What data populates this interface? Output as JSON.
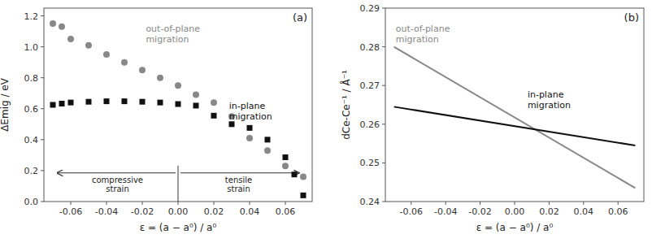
{
  "chart_data": [
    {
      "type": "scatter",
      "title": "(a)",
      "x_label": "ε = (a − a⁰) / a⁰",
      "y_label": "ΔEmig / eV",
      "series": [
        {
          "name": "out-of-plane\nmigration",
          "color": "#888888",
          "marker": "circle",
          "x": [
            -0.07,
            -0.065,
            -0.06,
            -0.05,
            -0.04,
            -0.03,
            -0.02,
            -0.01,
            0.0,
            0.01,
            0.02,
            0.03,
            0.04,
            0.05,
            0.06,
            0.07
          ],
          "values": [
            1.15,
            1.13,
            1.05,
            1.01,
            0.95,
            0.9,
            0.85,
            0.8,
            0.75,
            0.69,
            0.64,
            0.55,
            0.41,
            0.33,
            0.23,
            0.16
          ]
        },
        {
          "name": "in-plane\nmigration",
          "color": "#111111",
          "marker": "square",
          "x": [
            -0.07,
            -0.065,
            -0.06,
            -0.05,
            -0.04,
            -0.03,
            -0.02,
            -0.01,
            0.0,
            0.01,
            0.02,
            0.03,
            0.04,
            0.05,
            0.06,
            0.065,
            0.07
          ],
          "values": [
            0.625,
            0.633,
            0.64,
            0.645,
            0.648,
            0.648,
            0.645,
            0.64,
            0.63,
            0.62,
            0.555,
            0.5,
            0.476,
            0.4,
            0.286,
            0.175,
            0.04
          ]
        }
      ],
      "annotations": [
        "compressive\nstrain",
        "tensile\nstrain"
      ],
      "xlim": [
        -0.075,
        0.075
      ],
      "xticks": [
        -0.06,
        -0.04,
        -0.02,
        {
          "value": 0.0,
          "label": "0.00"
        },
        0.02,
        0.04,
        0.06
      ],
      "ylim": [
        0.0,
        1.25
      ],
      "yticks": [
        {
          "value": 0.0,
          "label": "0.0"
        },
        0.2,
        0.4,
        0.6,
        0.8,
        {
          "value": 1.0,
          "label": "1.0"
        },
        1.2
      ],
      "grid": false
    },
    {
      "type": "line",
      "title": "(b)",
      "x_label": "ε = (a − a⁰) / a⁰",
      "y_label": "dCe-Ce⁻¹ / Å⁻¹",
      "series": [
        {
          "name": "out-of-plane\nmigration",
          "color": "#888888",
          "line_style": "solid",
          "x": [
            -0.07,
            0.07
          ],
          "values": [
            0.28,
            0.2435
          ]
        },
        {
          "name": "in-plane\nmigration",
          "color": "#111111",
          "line_style": "solid",
          "x": [
            -0.07,
            0.07
          ],
          "values": [
            0.2645,
            0.2545
          ]
        }
      ],
      "xlim": [
        -0.075,
        0.075
      ],
      "xticks": [
        -0.06,
        -0.04,
        -0.02,
        {
          "value": 0.0,
          "label": "0.00"
        },
        0.02,
        0.04,
        0.06
      ],
      "ylim": [
        0.24,
        0.29
      ],
      "yticks": [
        0.24,
        0.25,
        0.26,
        0.27,
        0.28,
        0.29
      ],
      "grid": false
    }
  ]
}
